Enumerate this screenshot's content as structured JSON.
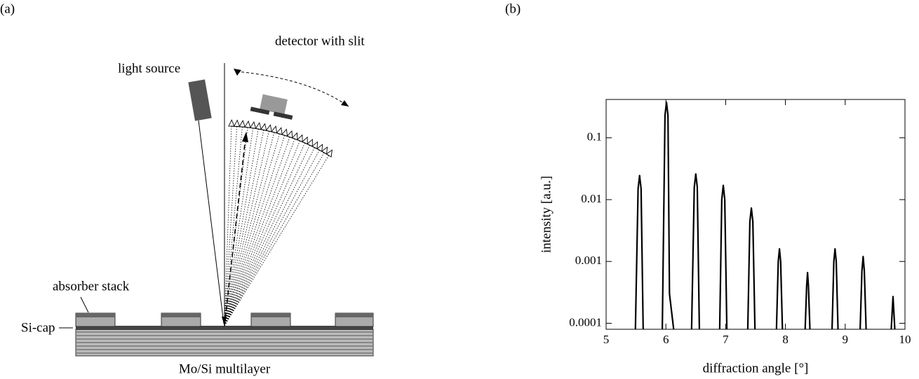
{
  "panel_labels": [
    "(a)",
    "(b)"
  ],
  "diagram": {
    "light_source": "light source",
    "detector": "detector with slit",
    "absorber": "absorber stack",
    "cap": "Si-cap",
    "multilayer": "Mo/Si multilayer"
  },
  "chart_data": {
    "type": "line",
    "xlabel": "diffraction angle [°]",
    "ylabel": "intensity [a.u.]",
    "x": [
      5.49,
      5.535,
      5.56,
      5.585,
      5.62,
      null,
      5.94,
      5.985,
      6.01,
      6.035,
      6.06,
      6.13,
      null,
      6.43,
      6.475,
      6.5,
      6.525,
      6.56,
      null,
      6.9,
      6.935,
      6.96,
      6.985,
      7.02,
      null,
      7.37,
      7.405,
      7.43,
      7.455,
      7.49,
      null,
      7.85,
      7.88,
      7.9,
      7.92,
      7.95,
      null,
      8.33,
      8.355,
      8.37,
      8.385,
      8.41,
      null,
      8.78,
      8.81,
      8.83,
      8.85,
      8.88,
      null,
      9.25,
      9.28,
      9.3,
      9.32,
      9.35,
      null,
      9.77,
      9.79,
      9.8,
      9.81,
      9.83
    ],
    "values": [
      8e-05,
      0.015,
      0.0245,
      0.015,
      8e-05,
      null,
      8e-05,
      0.23,
      0.376,
      0.23,
      0.0003,
      8e-05,
      null,
      8e-05,
      0.016,
      0.026,
      0.016,
      8e-05,
      null,
      8e-05,
      0.01,
      0.017,
      0.01,
      8e-05,
      null,
      8e-05,
      0.0044,
      0.0073,
      0.0044,
      8e-05,
      null,
      8e-05,
      0.001,
      0.0016,
      0.001,
      8e-05,
      null,
      8e-05,
      0.0004,
      0.00066,
      0.0004,
      8e-05,
      null,
      8e-05,
      0.001,
      0.0016,
      0.001,
      8e-05,
      null,
      8e-05,
      0.0007,
      0.0012,
      0.0007,
      8e-05,
      null,
      8e-05,
      0.00018,
      0.00027,
      0.00018,
      8e-05
    ],
    "color": "#000000",
    "yscale": "log",
    "xlim": [
      5,
      10
    ],
    "xticks": [
      5,
      6,
      7,
      8,
      9,
      10
    ],
    "ylim": [
      8e-05,
      0.417
    ],
    "yticks": [
      0.0001,
      0.001,
      0.01,
      0.1
    ]
  }
}
